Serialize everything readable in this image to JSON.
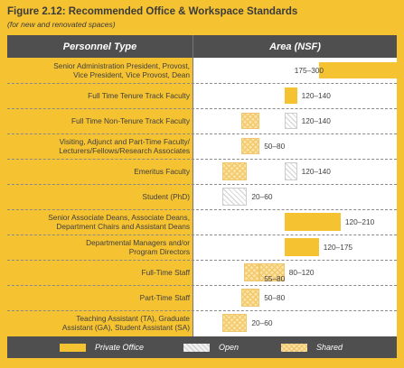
{
  "header": {
    "title": "Figure 2.12: Recommended Office & Workspace Standards",
    "subtitle": "(for new and renovated spaces)"
  },
  "columns": {
    "left": "Personnel Type",
    "right": "Area (NSF)"
  },
  "legend": {
    "private": "Private Office",
    "open": "Open",
    "shared": "Shared"
  },
  "colors": {
    "background": "#f5c232",
    "private": "#f5c232",
    "header": "#4f4f4f"
  },
  "chart_data": {
    "type": "bar",
    "orientation": "horizontal",
    "title": "Figure 2.12: Recommended Office & Workspace Standards",
    "subtitle": "(for new and renovated spaces)",
    "xlabel": "Area (NSF)",
    "ylabel": "Personnel Type",
    "xlim": [
      0,
      300
    ],
    "legend": [
      "Private Office",
      "Open",
      "Shared"
    ],
    "legend_position": "bottom",
    "rows": [
      {
        "personnel": [
          "Senior Administration President, Provost,",
          "Vice President, Vice Provost, Dean"
        ],
        "range_label": "175–300",
        "segments": [
          {
            "type": "private",
            "min": 175,
            "max": 300
          }
        ]
      },
      {
        "personnel": [
          "Full Time Tenure Track Faculty"
        ],
        "range_label": "120–140",
        "segments": [
          {
            "type": "private",
            "min": 120,
            "max": 140
          }
        ]
      },
      {
        "personnel": [
          "Full Time Non-Tenure Track Faculty"
        ],
        "range_label": "120–140",
        "segments": [
          {
            "type": "shared",
            "min": 50,
            "max": 80
          },
          {
            "type": "open",
            "min": 120,
            "max": 140
          }
        ]
      },
      {
        "personnel": [
          "Visiting, Adjunct and Part-Time Faculty/",
          "Lecturers/Fellows/Research Associates"
        ],
        "range_label": "50–80",
        "segments": [
          {
            "type": "shared",
            "min": 50,
            "max": 80
          }
        ]
      },
      {
        "personnel": [
          "Emeritus Faculty"
        ],
        "range_label": "120–140",
        "segments": [
          {
            "type": "shared",
            "min": 20,
            "max": 60
          },
          {
            "type": "open",
            "min": 120,
            "max": 140
          }
        ]
      },
      {
        "personnel": [
          "Student (PhD)"
        ],
        "range_label": "20–60",
        "segments": [
          {
            "type": "open",
            "min": 20,
            "max": 60
          }
        ]
      },
      {
        "personnel": [
          "Senior Associate Deans, Associate Deans,",
          "Department Chairs and Assistant Deans"
        ],
        "range_label": "120–210",
        "segments": [
          {
            "type": "private",
            "min": 120,
            "max": 210
          }
        ]
      },
      {
        "personnel": [
          "Departmental Managers and/or",
          "Program Directors"
        ],
        "range_label": "120–175",
        "segments": [
          {
            "type": "private",
            "min": 120,
            "max": 175
          }
        ]
      },
      {
        "personnel": [
          "Full-Time Staff"
        ],
        "range_label": "80–120",
        "segments": [
          {
            "type": "shared",
            "min": 80,
            "max": 120
          }
        ],
        "extra_label": "55–80",
        "extra_segment": {
          "type": "shared",
          "min": 55,
          "max": 80
        }
      },
      {
        "personnel": [
          "Part-Time Staff"
        ],
        "range_label": "50–80",
        "segments": [
          {
            "type": "shared",
            "min": 50,
            "max": 80
          }
        ]
      },
      {
        "personnel": [
          "Teaching Assistant (TA), Graduate",
          "Assistant (GA), Student Assistant (SA)"
        ],
        "range_label": "20–60",
        "segments": [
          {
            "type": "shared",
            "min": 20,
            "max": 60
          }
        ]
      }
    ]
  }
}
